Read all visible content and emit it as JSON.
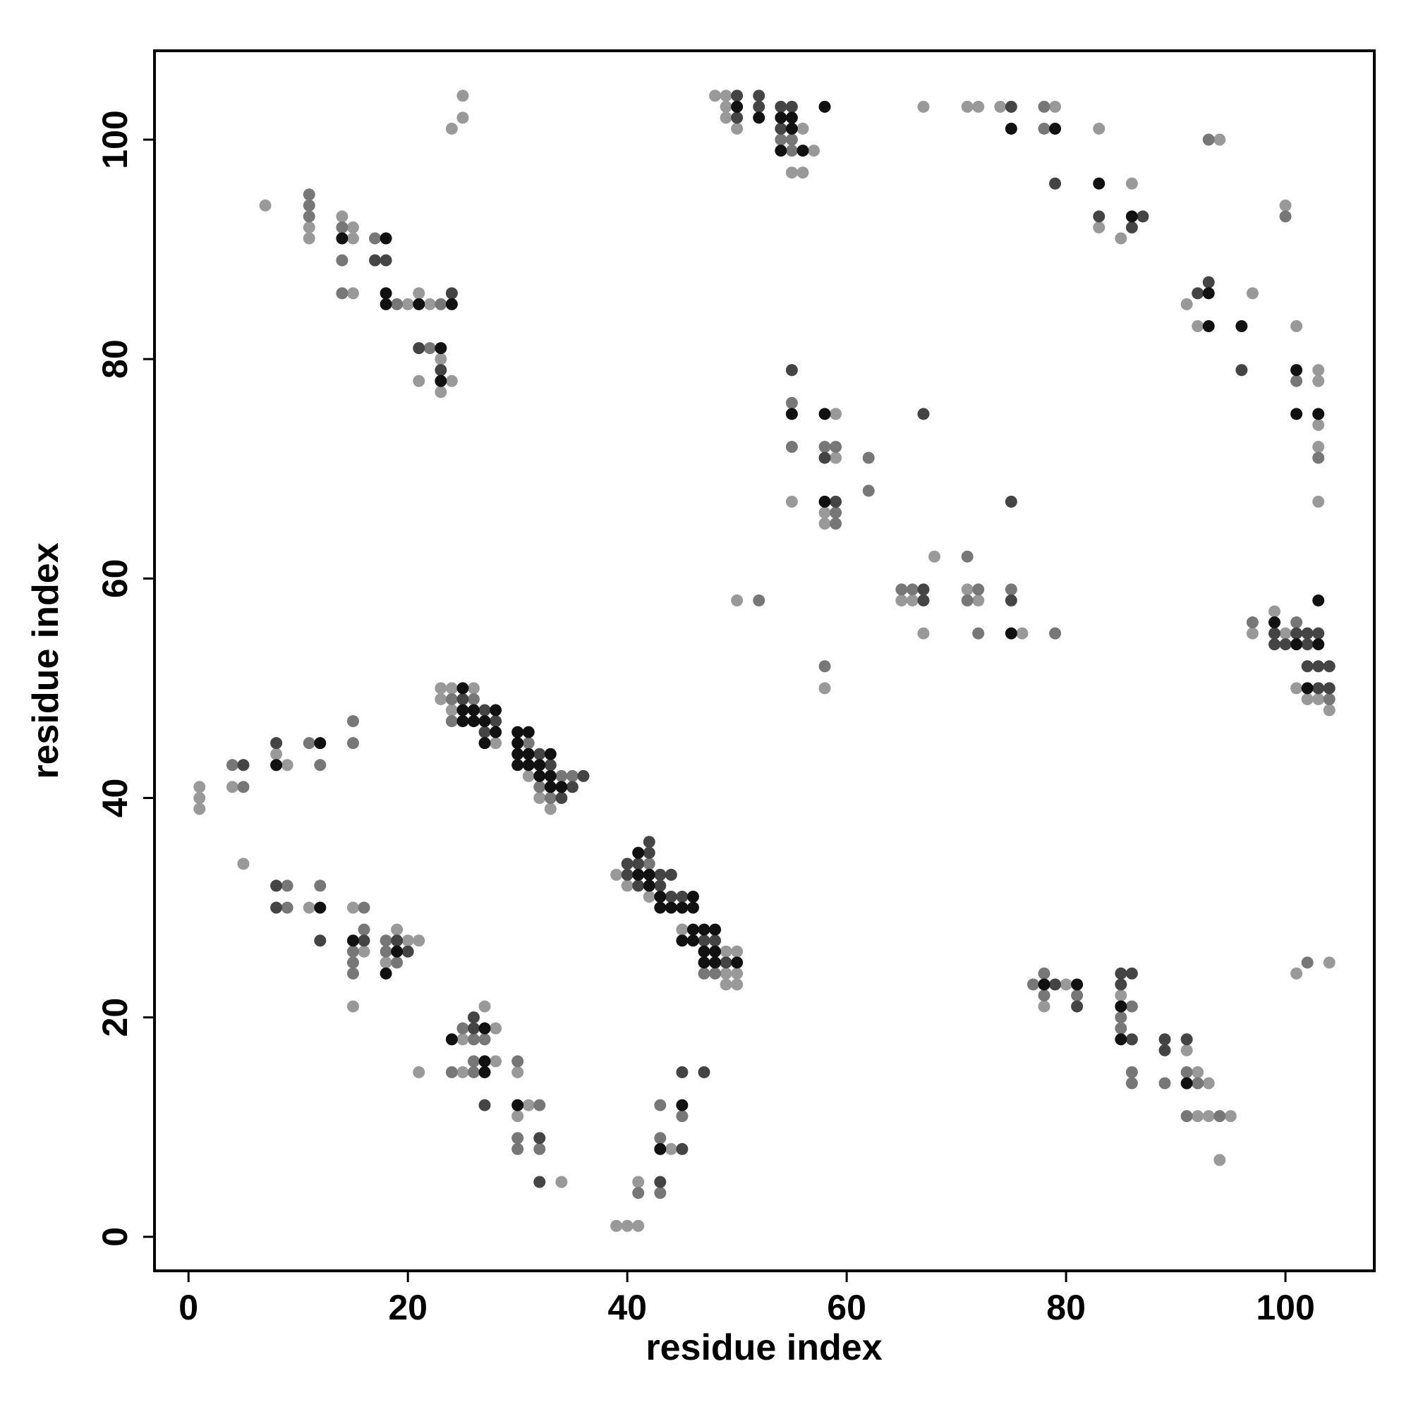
{
  "chart_data": {
    "type": "scatter",
    "xlabel": "residue index",
    "ylabel": "residue index",
    "xlim": [
      -3.1,
      108.1
    ],
    "ylim": [
      -3.1,
      108.1
    ],
    "xticks": [
      0,
      20,
      40,
      60,
      80,
      100
    ],
    "yticks": [
      0,
      20,
      40,
      60,
      80,
      100
    ],
    "series": [
      {
        "color": "#999999",
        "x": [
          25,
          25,
          24,
          7,
          11,
          11,
          14,
          15,
          15,
          15,
          20,
          22,
          21,
          23,
          21,
          24,
          23,
          48,
          49,
          49,
          49,
          50,
          56,
          57,
          55,
          56,
          67,
          71,
          72,
          74,
          79,
          83,
          94,
          86,
          83,
          85,
          100,
          97,
          91,
          92,
          101,
          103,
          103,
          103,
          103,
          103,
          55,
          59,
          59,
          58,
          58,
          67,
          76,
          71,
          68,
          65,
          66,
          72,
          50,
          58,
          99,
          97,
          100,
          101,
          102,
          103,
          104,
          1,
          1,
          1,
          4,
          8,
          9,
          23,
          24,
          26,
          23,
          24,
          28,
          31,
          32,
          33,
          39,
          40,
          42,
          45,
          49,
          50,
          49,
          50,
          49,
          50,
          5,
          11,
          15,
          15,
          16,
          18,
          19,
          20,
          21,
          27,
          28,
          25,
          28,
          21,
          25,
          30,
          30,
          31,
          34,
          39,
          40,
          41,
          41,
          44,
          80,
          78,
          85,
          91,
          92,
          93,
          92,
          93,
          95,
          94,
          104,
          101
        ],
        "values": [
          104,
          102,
          101,
          94,
          92,
          91,
          93,
          92,
          91,
          86,
          85,
          85,
          86,
          80,
          78,
          78,
          77,
          104,
          104,
          103,
          102,
          101,
          101,
          99,
          97,
          97,
          103,
          103,
          103,
          103,
          103,
          101,
          100,
          96,
          92,
          91,
          94,
          86,
          85,
          83,
          83,
          79,
          78,
          74,
          72,
          67,
          67,
          75,
          71,
          66,
          65,
          55,
          55,
          59,
          62,
          58,
          58,
          58,
          58,
          50,
          57,
          55,
          55,
          50,
          49,
          49,
          48,
          41,
          40,
          39,
          41,
          44,
          43,
          50,
          50,
          50,
          49,
          48,
          45,
          42,
          40,
          39,
          33,
          32,
          31,
          28,
          26,
          26,
          24,
          24,
          23,
          23,
          34,
          30,
          30,
          21,
          26,
          25,
          28,
          27,
          27,
          21,
          19,
          18,
          16,
          15,
          15,
          15,
          11,
          12,
          5,
          1,
          1,
          1,
          5,
          8,
          23,
          21,
          22,
          17,
          15,
          14,
          11,
          11,
          11,
          7,
          25,
          24
        ]
      },
      {
        "color": "#777777",
        "x": [
          11,
          11,
          11,
          14,
          14,
          14,
          17,
          19,
          23,
          22,
          54,
          55,
          55,
          78,
          78,
          93,
          100,
          103,
          101,
          55,
          55,
          58,
          59,
          59,
          59,
          62,
          62,
          65,
          66,
          72,
          75,
          71,
          72,
          79,
          71,
          52,
          58,
          97,
          101,
          104,
          4,
          5,
          11,
          12,
          15,
          15,
          24,
          26,
          24,
          31,
          34,
          35,
          32,
          33,
          42,
          47,
          48,
          9,
          12,
          9,
          16,
          16,
          15,
          15,
          15,
          18,
          18,
          19,
          25,
          26,
          27,
          26,
          24,
          26,
          30,
          30,
          30,
          32,
          32,
          41,
          43,
          43,
          43,
          45,
          78,
          77,
          78,
          81,
          86,
          85,
          85,
          86,
          91,
          86,
          89,
          92,
          91,
          94,
          102
        ],
        "values": [
          95,
          94,
          93,
          92,
          89,
          86,
          91,
          85,
          85,
          81,
          100,
          100,
          99,
          103,
          101,
          100,
          93,
          71,
          78,
          76,
          72,
          72,
          72,
          66,
          65,
          71,
          68,
          59,
          59,
          59,
          59,
          58,
          55,
          55,
          62,
          58,
          52,
          56,
          56,
          49,
          43,
          41,
          45,
          43,
          47,
          45,
          49,
          49,
          47,
          45,
          42,
          42,
          41,
          40,
          34,
          24,
          24,
          32,
          32,
          30,
          30,
          28,
          26,
          25,
          24,
          27,
          26,
          25,
          19,
          18,
          18,
          16,
          15,
          15,
          16,
          9,
          8,
          12,
          8,
          4,
          12,
          9,
          4,
          11,
          24,
          23,
          22,
          22,
          21,
          20,
          19,
          15,
          15,
          14,
          14,
          14,
          11,
          11,
          25
        ]
      },
      {
        "color": "#444444",
        "x": [
          18,
          17,
          24,
          21,
          23,
          50,
          52,
          52,
          54,
          55,
          50,
          54,
          75,
          79,
          83,
          87,
          86,
          93,
          92,
          96,
          55,
          58,
          59,
          67,
          75,
          67,
          67,
          75,
          99,
          101,
          102,
          103,
          99,
          100,
          102,
          102,
          103,
          104,
          103,
          104,
          5,
          8,
          25,
          27,
          28,
          27,
          32,
          33,
          36,
          35,
          34,
          42,
          42,
          40,
          41,
          40,
          43,
          44,
          41,
          43,
          44,
          45,
          47,
          48,
          49,
          8,
          8,
          12,
          16,
          19,
          20,
          26,
          26,
          27,
          32,
          32,
          43,
          45,
          45,
          47,
          79,
          85,
          86,
          85,
          81,
          86,
          89,
          91,
          89
        ],
        "values": [
          89,
          89,
          86,
          81,
          79,
          104,
          104,
          103,
          103,
          103,
          102,
          101,
          103,
          96,
          93,
          93,
          92,
          87,
          86,
          79,
          79,
          71,
          67,
          75,
          67,
          59,
          58,
          58,
          55,
          55,
          55,
          55,
          54,
          54,
          54,
          52,
          52,
          52,
          50,
          50,
          43,
          45,
          49,
          48,
          47,
          46,
          44,
          43,
          42,
          41,
          40,
          36,
          35,
          34,
          34,
          33,
          33,
          33,
          32,
          32,
          31,
          31,
          27,
          27,
          25,
          32,
          30,
          27,
          27,
          27,
          26,
          20,
          19,
          12,
          9,
          5,
          5,
          15,
          8,
          15,
          23,
          24,
          24,
          23,
          21,
          18,
          18,
          18,
          17
        ]
      },
      {
        "color": "#111111",
        "x": [
          14,
          18,
          18,
          18,
          21,
          24,
          23,
          23,
          58,
          50,
          52,
          54,
          55,
          55,
          54,
          56,
          75,
          79,
          83,
          86,
          93,
          93,
          96,
          101,
          101,
          103,
          55,
          58,
          58,
          75,
          103,
          99,
          101,
          103,
          102,
          8,
          12,
          25,
          25,
          26,
          28,
          25,
          26,
          27,
          28,
          27,
          30,
          31,
          30,
          30,
          31,
          33,
          30,
          31,
          32,
          32,
          33,
          33,
          34,
          41,
          41,
          42,
          42,
          43,
          46,
          43,
          44,
          45,
          46,
          46,
          47,
          48,
          45,
          46,
          47,
          48,
          47,
          48,
          50,
          12,
          15,
          18,
          19,
          27,
          24,
          27,
          27,
          30,
          43,
          45,
          78,
          81,
          85,
          85,
          91
        ],
        "values": [
          91,
          91,
          86,
          85,
          85,
          85,
          81,
          78,
          103,
          103,
          102,
          102,
          102,
          101,
          99,
          99,
          101,
          101,
          96,
          93,
          86,
          83,
          83,
          79,
          75,
          75,
          75,
          75,
          67,
          55,
          58,
          56,
          54,
          54,
          50,
          43,
          45,
          50,
          48,
          48,
          48,
          47,
          47,
          47,
          46,
          45,
          46,
          46,
          45,
          44,
          44,
          44,
          43,
          43,
          43,
          42,
          42,
          41,
          41,
          35,
          33,
          33,
          32,
          31,
          31,
          30,
          30,
          30,
          30,
          28,
          28,
          28,
          27,
          27,
          26,
          26,
          25,
          25,
          25,
          30,
          27,
          24,
          26,
          19,
          18,
          16,
          15,
          12,
          8,
          12,
          23,
          23,
          21,
          18,
          14
        ]
      }
    ]
  }
}
